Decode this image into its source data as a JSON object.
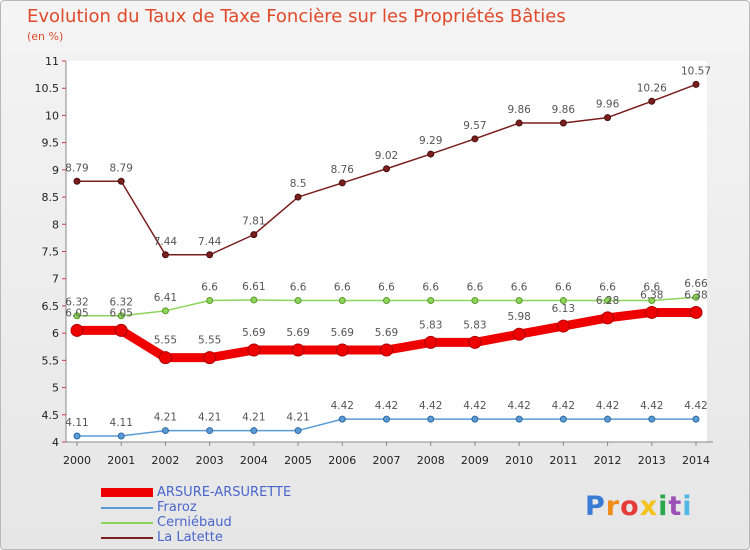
{
  "title": "Evolution du Taux de Taxe Foncière sur les Propriétés Bâties",
  "unit_label": "(en %)",
  "logo": {
    "text": "Proxiti",
    "letters": [
      "P",
      "r",
      "o",
      "x",
      "i",
      "t",
      "i"
    ],
    "colors": [
      "#3a7bd5",
      "#f08c1a",
      "#e63b3b",
      "#f3c21b",
      "#2aa84a",
      "#9b51b5",
      "#4fb7e5"
    ]
  },
  "chart_data": {
    "type": "line",
    "title": "Evolution du Taux de Taxe Foncière sur les Propriétés Bâties",
    "ylabel": "(en %)",
    "xlabel": "",
    "x": [
      "2000",
      "2001",
      "2002",
      "2003",
      "2004",
      "2005",
      "2006",
      "2007",
      "2008",
      "2009",
      "2010",
      "2011",
      "2012",
      "2013",
      "2014"
    ],
    "ylim": [
      4,
      11
    ],
    "yticks": [
      "4",
      "4.5",
      "5",
      "5.5",
      "6",
      "6.5",
      "7",
      "7.5",
      "8",
      "8.5",
      "9",
      "9.5",
      "10",
      "10.5",
      "11"
    ],
    "series": [
      {
        "name": "ARSURE-ARSURETTE",
        "color": "#ee0000",
        "width": 9,
        "marker": 6,
        "values": [
          6.05,
          6.05,
          5.55,
          5.55,
          5.69,
          5.69,
          5.69,
          5.69,
          5.83,
          5.83,
          5.98,
          6.13,
          6.28,
          6.38,
          6.38
        ],
        "labels": [
          "6.05",
          "6.05",
          "5.55",
          "5.55",
          "5.69",
          "5.69",
          "5.69",
          "5.69",
          "5.83",
          "5.83",
          "5.98",
          "6.13",
          "6.28",
          "6.38",
          "6.38"
        ]
      },
      {
        "name": "Fraroz",
        "color": "#5b9bd5",
        "width": 1.5,
        "marker": 3,
        "values": [
          4.11,
          4.11,
          4.21,
          4.21,
          4.21,
          4.21,
          4.42,
          4.42,
          4.42,
          4.42,
          4.42,
          4.42,
          4.42,
          4.42,
          4.42
        ],
        "labels": [
          "4.11",
          "4.11",
          "4.21",
          "4.21",
          "4.21",
          "4.21",
          "4.42",
          "4.42",
          "4.42",
          "4.42",
          "4.42",
          "4.42",
          "4.42",
          "4.42",
          "4.42"
        ]
      },
      {
        "name": "Cerniébaud",
        "color": "#8ed45a",
        "width": 1.5,
        "marker": 3,
        "values": [
          6.32,
          6.32,
          6.41,
          6.6,
          6.61,
          6.6,
          6.6,
          6.6,
          6.6,
          6.6,
          6.6,
          6.6,
          6.6,
          6.6,
          6.66
        ],
        "labels": [
          "6.32",
          "6.32",
          "6.41",
          "6.6",
          "6.61",
          "6.6",
          "6.6",
          "6.6",
          "6.6",
          "6.6",
          "6.6",
          "6.6",
          "6.6",
          "6.6",
          "6.66"
        ]
      },
      {
        "name": "La Latette",
        "color": "#7a1e1e",
        "width": 1.5,
        "marker": 3,
        "values": [
          8.79,
          8.79,
          7.44,
          7.44,
          7.81,
          8.5,
          8.76,
          9.02,
          9.29,
          9.57,
          9.86,
          9.86,
          9.96,
          10.26,
          10.57
        ],
        "labels": [
          "8.79",
          "8.79",
          "7.44",
          "7.44",
          "7.81",
          "8.5",
          "8.76",
          "9.02",
          "9.29",
          "9.57",
          "9.86",
          "9.86",
          "9.96",
          "10.26",
          "10.57"
        ]
      }
    ]
  }
}
